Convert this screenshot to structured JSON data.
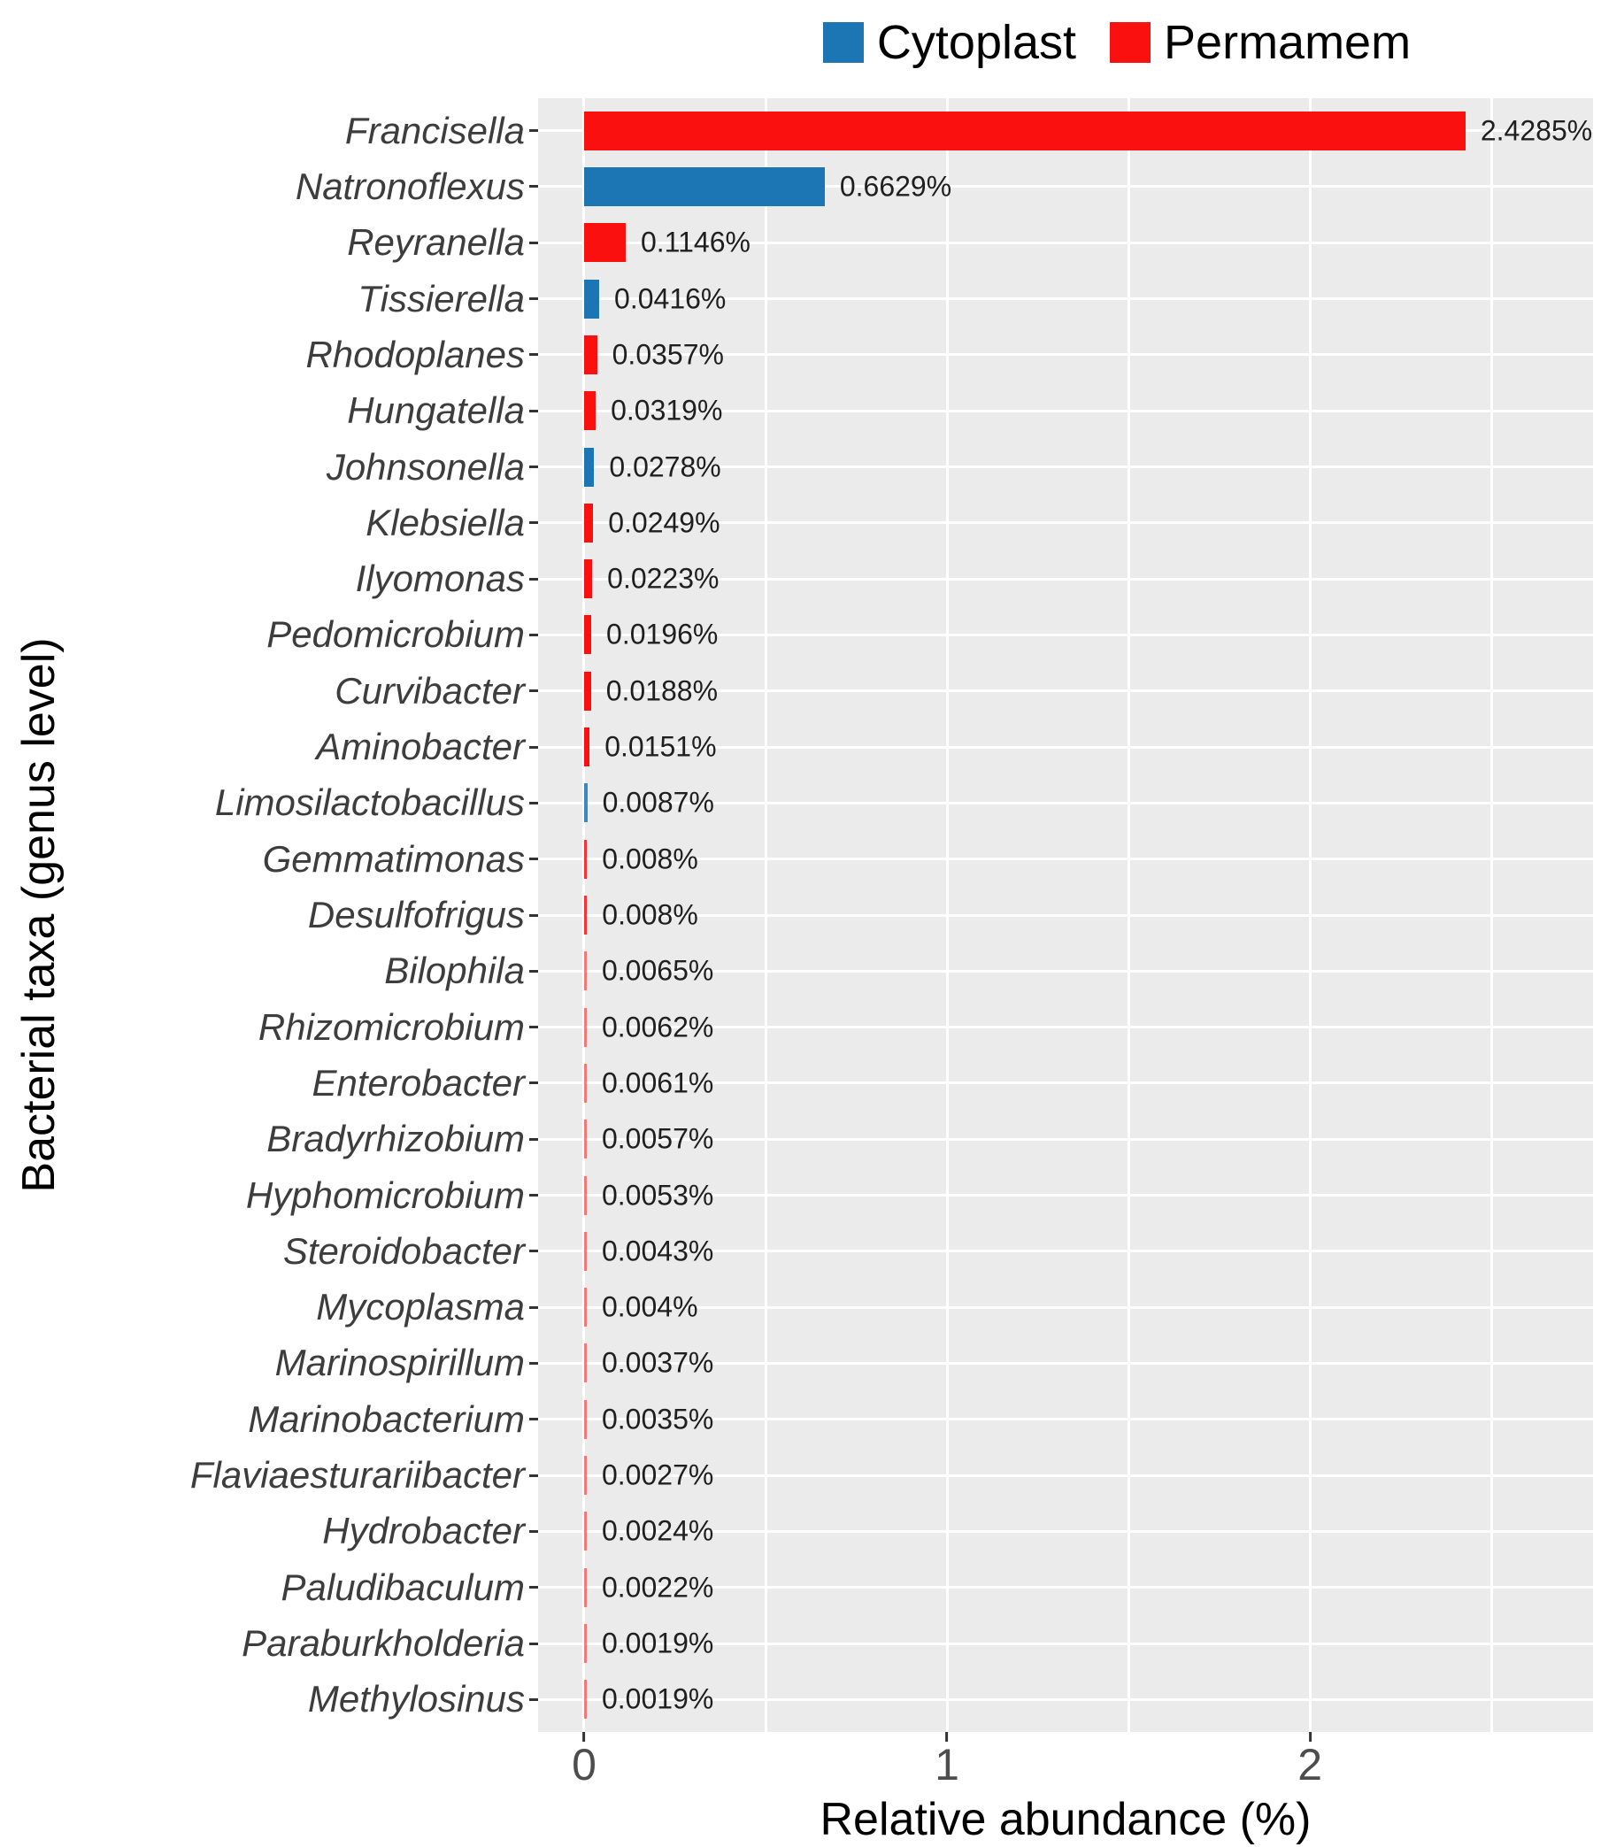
{
  "chart_data": {
    "type": "bar",
    "orientation": "horizontal",
    "xlabel": "Relative abundance (%)",
    "ylabel": "Bacterial taxa (genus level)",
    "xlim": [
      -0.1268,
      2.78
    ],
    "x_ticks": [
      0,
      1,
      2
    ],
    "x_minor_gridlines": [
      0.5,
      1.5,
      2.5
    ],
    "grid": true,
    "plot_background": "#ebebeb",
    "gridline_color": "#ffffff",
    "legend_position": "top-center",
    "series": [
      {
        "name": "Cytoplast",
        "color": "#1d76b4"
      },
      {
        "name": "Permamem",
        "color": "#fb1010"
      }
    ],
    "bars": [
      {
        "taxon": "Francisella",
        "series": "Permamem",
        "value": 2.4285,
        "label": "2.4285%"
      },
      {
        "taxon": "Natronoflexus",
        "series": "Cytoplast",
        "value": 0.6629,
        "label": "0.6629%"
      },
      {
        "taxon": "Reyranella",
        "series": "Permamem",
        "value": 0.1146,
        "label": "0.1146%"
      },
      {
        "taxon": "Tissierella",
        "series": "Cytoplast",
        "value": 0.0416,
        "label": "0.0416%"
      },
      {
        "taxon": "Rhodoplanes",
        "series": "Permamem",
        "value": 0.0357,
        "label": "0.0357%"
      },
      {
        "taxon": "Hungatella",
        "series": "Permamem",
        "value": 0.0319,
        "label": "0.0319%"
      },
      {
        "taxon": "Johnsonella",
        "series": "Cytoplast",
        "value": 0.0278,
        "label": "0.0278%"
      },
      {
        "taxon": "Klebsiella",
        "series": "Permamem",
        "value": 0.0249,
        "label": "0.0249%"
      },
      {
        "taxon": "Ilyomonas",
        "series": "Permamem",
        "value": 0.0223,
        "label": "0.0223%"
      },
      {
        "taxon": "Pedomicrobium",
        "series": "Permamem",
        "value": 0.0196,
        "label": "0.0196%"
      },
      {
        "taxon": "Curvibacter",
        "series": "Permamem",
        "value": 0.0188,
        "label": "0.0188%"
      },
      {
        "taxon": "Aminobacter",
        "series": "Permamem",
        "value": 0.0151,
        "label": "0.0151%"
      },
      {
        "taxon": "Limosilactobacillus",
        "series": "Cytoplast",
        "value": 0.0087,
        "label": "0.0087%"
      },
      {
        "taxon": "Gemmatimonas",
        "series": "Permamem",
        "value": 0.008,
        "label": "0.008%"
      },
      {
        "taxon": "Desulfofrigus",
        "series": "Permamem",
        "value": 0.008,
        "label": "0.008%"
      },
      {
        "taxon": "Bilophila",
        "series": "Permamem",
        "value": 0.0065,
        "label": "0.0065%"
      },
      {
        "taxon": "Rhizomicrobium",
        "series": "Permamem",
        "value": 0.0062,
        "label": "0.0062%"
      },
      {
        "taxon": "Enterobacter",
        "series": "Permamem",
        "value": 0.0061,
        "label": "0.0061%"
      },
      {
        "taxon": "Bradyrhizobium",
        "series": "Permamem",
        "value": 0.0057,
        "label": "0.0057%"
      },
      {
        "taxon": "Hyphomicrobium",
        "series": "Permamem",
        "value": 0.0053,
        "label": "0.0053%"
      },
      {
        "taxon": "Steroidobacter",
        "series": "Permamem",
        "value": 0.0043,
        "label": "0.0043%"
      },
      {
        "taxon": "Mycoplasma",
        "series": "Permamem",
        "value": 0.004,
        "label": "0.004%"
      },
      {
        "taxon": "Marinospirillum",
        "series": "Permamem",
        "value": 0.0037,
        "label": "0.0037%"
      },
      {
        "taxon": "Marinobacterium",
        "series": "Permamem",
        "value": 0.0035,
        "label": "0.0035%"
      },
      {
        "taxon": "Flaviaesturariibacter",
        "series": "Permamem",
        "value": 0.0027,
        "label": "0.0027%"
      },
      {
        "taxon": "Hydrobacter",
        "series": "Permamem",
        "value": 0.0024,
        "label": "0.0024%"
      },
      {
        "taxon": "Paludibaculum",
        "series": "Permamem",
        "value": 0.0022,
        "label": "0.0022%"
      },
      {
        "taxon": "Paraburkholderia",
        "series": "Permamem",
        "value": 0.0019,
        "label": "0.0019%"
      },
      {
        "taxon": "Methylosinus",
        "series": "Permamem",
        "value": 0.0019,
        "label": "0.0019%"
      }
    ]
  }
}
